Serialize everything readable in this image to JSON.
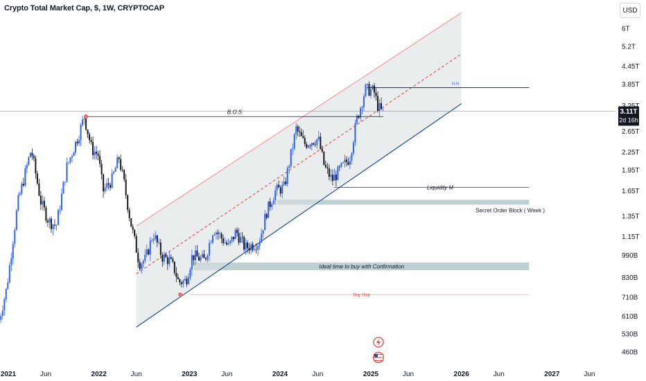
{
  "header": {
    "title": "Crypto Total Market Cap, $, 1W, CRYPTOCAP"
  },
  "currency_button": {
    "label": "USD"
  },
  "chart_data": {
    "type": "candlestick",
    "scale": "log",
    "ylim": [
      420,
      7000
    ],
    "xlim": [
      "2020-11-25",
      "2027-08-20"
    ],
    "y_ticks": [
      {
        "label": "6T",
        "value": 6000
      },
      {
        "label": "5.2T",
        "value": 5200
      },
      {
        "label": "4.45T",
        "value": 4450
      },
      {
        "label": "3.85T",
        "value": 3850
      },
      {
        "label": "3.25T",
        "value": 3250
      },
      {
        "label": "2.65T",
        "value": 2650
      },
      {
        "label": "2.25T",
        "value": 2250
      },
      {
        "label": "1.95T",
        "value": 1950
      },
      {
        "label": "1.65T",
        "value": 1650
      },
      {
        "label": "1.35T",
        "value": 1350
      },
      {
        "label": "1.15T",
        "value": 1150
      },
      {
        "label": "990B",
        "value": 990
      },
      {
        "label": "830B",
        "value": 830
      },
      {
        "label": "710B",
        "value": 710
      },
      {
        "label": "610B",
        "value": 610
      },
      {
        "label": "530B",
        "value": 530
      },
      {
        "label": "460B",
        "value": 460
      }
    ],
    "x_ticks": [
      {
        "label": "2021",
        "date": "2021-01-01",
        "bold": true
      },
      {
        "label": "Jun",
        "date": "2021-06-01",
        "bold": false
      },
      {
        "label": "2022",
        "date": "2022-01-01",
        "bold": true
      },
      {
        "label": "Jun",
        "date": "2022-06-01",
        "bold": false
      },
      {
        "label": "2023",
        "date": "2023-01-01",
        "bold": true
      },
      {
        "label": "Jun",
        "date": "2023-06-01",
        "bold": false
      },
      {
        "label": "2024",
        "date": "2024-01-01",
        "bold": true
      },
      {
        "label": "Jun",
        "date": "2024-06-01",
        "bold": false
      },
      {
        "label": "2025",
        "date": "2025-01-01",
        "bold": true
      },
      {
        "label": "Jun",
        "date": "2025-06-01",
        "bold": false
      },
      {
        "label": "2026",
        "date": "2026-01-01",
        "bold": true
      },
      {
        "label": "Jun",
        "date": "2026-06-01",
        "bold": false
      },
      {
        "label": "2027",
        "date": "2027-01-01",
        "bold": true
      },
      {
        "label": "Jun",
        "date": "2027-06-01",
        "bold": false
      }
    ],
    "path_points": [
      [
        "2020-11-25",
        560
      ],
      [
        "2021-01-01",
        760
      ],
      [
        "2021-02-15",
        1500
      ],
      [
        "2021-04-10",
        2300
      ],
      [
        "2021-05-20",
        1500
      ],
      [
        "2021-06-20",
        1300
      ],
      [
        "2021-07-20",
        1250
      ],
      [
        "2021-09-01",
        2000
      ],
      [
        "2021-10-20",
        2600
      ],
      [
        "2021-11-10",
        2980
      ],
      [
        "2021-12-10",
        2300
      ],
      [
        "2022-01-05",
        2200
      ],
      [
        "2022-01-25",
        1650
      ],
      [
        "2022-03-01",
        1800
      ],
      [
        "2022-03-30",
        2150
      ],
      [
        "2022-04-20",
        1750
      ],
      [
        "2022-05-15",
        1300
      ],
      [
        "2022-06-20",
        930
      ],
      [
        "2022-07-15",
        960
      ],
      [
        "2022-08-15",
        1180
      ],
      [
        "2022-09-20",
        980
      ],
      [
        "2022-10-20",
        950
      ],
      [
        "2022-11-10",
        880
      ],
      [
        "2022-11-25",
        800
      ],
      [
        "2022-12-25",
        810
      ],
      [
        "2023-01-20",
        990
      ],
      [
        "2023-03-10",
        950
      ],
      [
        "2023-04-15",
        1230
      ],
      [
        "2023-06-15",
        1060
      ],
      [
        "2023-07-15",
        1200
      ],
      [
        "2023-08-20",
        1050
      ],
      [
        "2023-10-15",
        1100
      ],
      [
        "2023-11-15",
        1400
      ],
      [
        "2023-12-20",
        1650
      ],
      [
        "2024-01-25",
        1700
      ],
      [
        "2024-03-13",
        2700
      ],
      [
        "2024-04-15",
        2400
      ],
      [
        "2024-06-10",
        2500
      ],
      [
        "2024-07-05",
        2000
      ],
      [
        "2024-08-05",
        1800
      ],
      [
        "2024-09-05",
        1950
      ],
      [
        "2024-10-15",
        2150
      ],
      [
        "2024-11-12",
        2900
      ],
      [
        "2024-12-17",
        3700
      ],
      [
        "2025-01-20",
        3650
      ],
      [
        "2025-02-05",
        3250
      ],
      [
        "2025-02-20",
        3100
      ]
    ],
    "current_price": {
      "value": 3110,
      "label": "3.11T",
      "countdown": "2d 16h"
    },
    "annotations": {
      "bos": {
        "label": "B.O.S",
        "value": 2980,
        "date_start": "2021-11-10",
        "date_end": "2025-02-20"
      },
      "hh": {
        "label": "H.H",
        "value": 3750,
        "date_start": "2024-12-17",
        "date_end": "2026-10-01"
      },
      "liquidity": {
        "label": "Liquidity M",
        "value": 1700,
        "date_start": "2024-08-05",
        "date_end": "2026-10-01"
      },
      "order_block": {
        "label": "Secret Order Block ( Week )",
        "low": 1480,
        "high": 1540,
        "date_start": "2023-12-20",
        "date_end": "2026-10-01"
      },
      "buy_zone": {
        "label": "Ideal time to buy with Confirmation",
        "low": 880,
        "high": 935,
        "date_start": "2023-01-20",
        "date_end": "2026-10-01"
      },
      "buy_stop": {
        "label": "Buy Stop",
        "value": 725,
        "date_start": "2023-01-01",
        "date_end": "2026-10-01"
      },
      "channel": {
        "lower": [
          [
            "2022-06-01",
            560
          ],
          [
            "2026-01-01",
            3300
          ]
        ],
        "upper": [
          [
            "2022-06-01",
            1250
          ],
          [
            "2026-01-01",
            6800
          ]
        ],
        "mid": [
          [
            "2022-06-01",
            855
          ],
          [
            "2026-01-01",
            4900
          ]
        ]
      },
      "markers": [
        {
          "date": "2021-11-10",
          "value": 2980,
          "color": "#e57373"
        },
        {
          "date": "2022-11-25",
          "value": 725,
          "color": "#e57373"
        }
      ]
    },
    "colors": {
      "up": "#2962ff",
      "down": "#131722",
      "channel_lower": "#1e4f8c",
      "channel_upper": "#f28b8b",
      "channel_mid": "#e0413a",
      "channel_fill": "#d9dedf",
      "zone_fill": "#b2c9cb",
      "hline": "#131722",
      "buy_stop": "#f0a0a0"
    }
  },
  "icons": {
    "flash_icon": "flash-icon",
    "flag_icon": "us-flag-icon"
  }
}
